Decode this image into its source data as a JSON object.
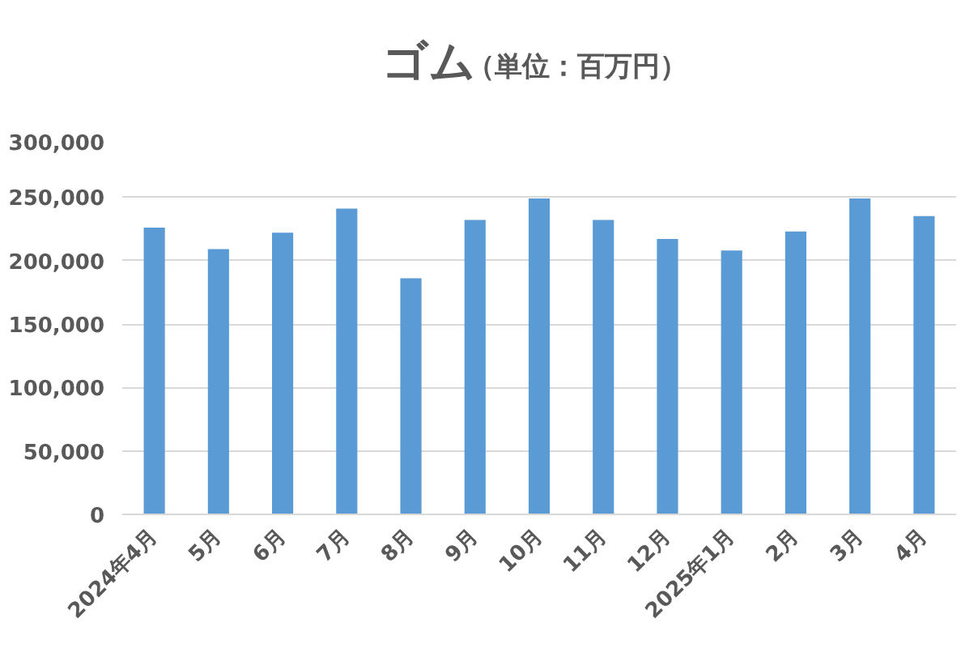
{
  "chart_data": {
    "type": "bar",
    "title": "ゴム",
    "subtitle": "（単位：百万円）",
    "categories": [
      "2024年4月",
      "5月",
      "6月",
      "7月",
      "8月",
      "9月",
      "10月",
      "11月",
      "12月",
      "2025年1月",
      "2月",
      "3月",
      "4月"
    ],
    "values": [
      226000,
      209000,
      222000,
      241000,
      186000,
      232000,
      249000,
      232000,
      217000,
      208000,
      223000,
      249000,
      235000
    ],
    "color": "#5b9bd5",
    "ylim": [
      0,
      300000
    ],
    "yticks": [
      {
        "value": 0,
        "label": "0"
      },
      {
        "value": 50000,
        "label": "50,000"
      },
      {
        "value": 100000,
        "label": "100,000"
      },
      {
        "value": 150000,
        "label": "150,000"
      },
      {
        "value": 200000,
        "label": "200,000"
      },
      {
        "value": 250000,
        "label": "250,000"
      },
      {
        "value": 300000,
        "label": "300,000"
      }
    ],
    "grid": "y"
  }
}
